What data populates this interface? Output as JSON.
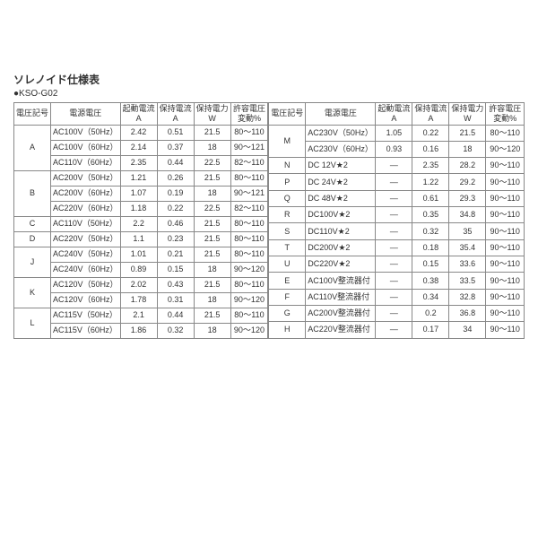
{
  "title": "ソレノイド仕様表",
  "subtitle": "●KSO-G02",
  "headers": {
    "code": "電圧記号",
    "volt": "電源電圧",
    "start_a": "起動電流",
    "start_a2": "A",
    "hold_a": "保持電流",
    "hold_a2": "A",
    "hold_w": "保持電力",
    "hold_w2": "W",
    "tol": "許容電圧",
    "tol2": "変動%"
  },
  "left": [
    {
      "code": "A",
      "span": 3,
      "rows": [
        [
          "AC100V（50Hz）",
          "2.42",
          "0.51",
          "21.5",
          "80～110"
        ],
        [
          "AC100V（60Hz）",
          "2.14",
          "0.37",
          "18",
          "90～121"
        ],
        [
          "AC110V（60Hz）",
          "2.35",
          "0.44",
          "22.5",
          "82～110"
        ]
      ]
    },
    {
      "code": "B",
      "span": 3,
      "rows": [
        [
          "AC200V（50Hz）",
          "1.21",
          "0.26",
          "21.5",
          "80～110"
        ],
        [
          "AC200V（60Hz）",
          "1.07",
          "0.19",
          "18",
          "90～121"
        ],
        [
          "AC220V（60Hz）",
          "1.18",
          "0.22",
          "22.5",
          "82～110"
        ]
      ]
    },
    {
      "code": "C",
      "span": 1,
      "rows": [
        [
          "AC110V（50Hz）",
          "2.2",
          "0.46",
          "21.5",
          "80～110"
        ]
      ]
    },
    {
      "code": "D",
      "span": 1,
      "rows": [
        [
          "AC220V（50Hz）",
          "1.1",
          "0.23",
          "21.5",
          "80～110"
        ]
      ]
    },
    {
      "code": "J",
      "span": 2,
      "rows": [
        [
          "AC240V（50Hz）",
          "1.01",
          "0.21",
          "21.5",
          "80～110"
        ],
        [
          "AC240V（60Hz）",
          "0.89",
          "0.15",
          "18",
          "90～120"
        ]
      ]
    },
    {
      "code": "K",
      "span": 2,
      "rows": [
        [
          "AC120V（50Hz）",
          "2.02",
          "0.43",
          "21.5",
          "80～110"
        ],
        [
          "AC120V（60Hz）",
          "1.78",
          "0.31",
          "18",
          "90～120"
        ]
      ]
    },
    {
      "code": "L",
      "span": 2,
      "rows": [
        [
          "AC115V（50Hz）",
          "2.1",
          "0.44",
          "21.5",
          "80～110"
        ],
        [
          "AC115V（60Hz）",
          "1.86",
          "0.32",
          "18",
          "90～120"
        ]
      ]
    }
  ],
  "right": [
    {
      "code": "M",
      "span": 2,
      "rows": [
        [
          "AC230V（50Hz）",
          "1.05",
          "0.22",
          "21.5",
          "80～110"
        ],
        [
          "AC230V（60Hz）",
          "0.93",
          "0.16",
          "18",
          "90～120"
        ]
      ]
    },
    {
      "code": "N",
      "span": 1,
      "rows": [
        [
          "DC 12V★2",
          "―",
          "2.35",
          "28.2",
          "90～110"
        ]
      ]
    },
    {
      "code": "P",
      "span": 1,
      "rows": [
        [
          "DC 24V★2",
          "―",
          "1.22",
          "29.2",
          "90～110"
        ]
      ]
    },
    {
      "code": "Q",
      "span": 1,
      "rows": [
        [
          "DC 48V★2",
          "―",
          "0.61",
          "29.3",
          "90～110"
        ]
      ]
    },
    {
      "code": "R",
      "span": 1,
      "rows": [
        [
          "DC100V★2",
          "―",
          "0.35",
          "34.8",
          "90～110"
        ]
      ]
    },
    {
      "code": "S",
      "span": 1,
      "rows": [
        [
          "DC110V★2",
          "―",
          "0.32",
          "35",
          "90～110"
        ]
      ]
    },
    {
      "code": "T",
      "span": 1,
      "rows": [
        [
          "DC200V★2",
          "―",
          "0.18",
          "35.4",
          "90～110"
        ]
      ]
    },
    {
      "code": "U",
      "span": 1,
      "rows": [
        [
          "DC220V★2",
          "―",
          "0.15",
          "33.6",
          "90～110"
        ]
      ]
    },
    {
      "code": "E",
      "span": 1,
      "rows": [
        [
          "AC100V整流器付",
          "―",
          "0.38",
          "33.5",
          "90～110"
        ]
      ]
    },
    {
      "code": "F",
      "span": 1,
      "rows": [
        [
          "AC110V整流器付",
          "―",
          "0.34",
          "32.8",
          "90～110"
        ]
      ]
    },
    {
      "code": "G",
      "span": 1,
      "rows": [
        [
          "AC200V整流器付",
          "―",
          "0.2",
          "36.8",
          "90～110"
        ]
      ]
    },
    {
      "code": "H",
      "span": 1,
      "rows": [
        [
          "AC220V整流器付",
          "―",
          "0.17",
          "34",
          "90～110"
        ]
      ]
    }
  ]
}
